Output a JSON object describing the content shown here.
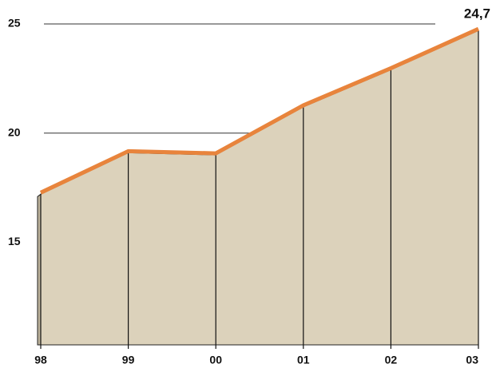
{
  "chart_data": {
    "type": "area",
    "categories": [
      "98",
      "99",
      "00",
      "01",
      "02",
      "03"
    ],
    "values": [
      17.2,
      19.1,
      19.0,
      21.2,
      22.9,
      24.7
    ],
    "value_labels": [
      null,
      null,
      null,
      null,
      null,
      "24,7"
    ],
    "color": "#e8843c",
    "fill": "#dcd2bb",
    "ylim": [
      10.3,
      25
    ],
    "yticks": [
      15,
      20,
      25
    ],
    "grid": true
  }
}
